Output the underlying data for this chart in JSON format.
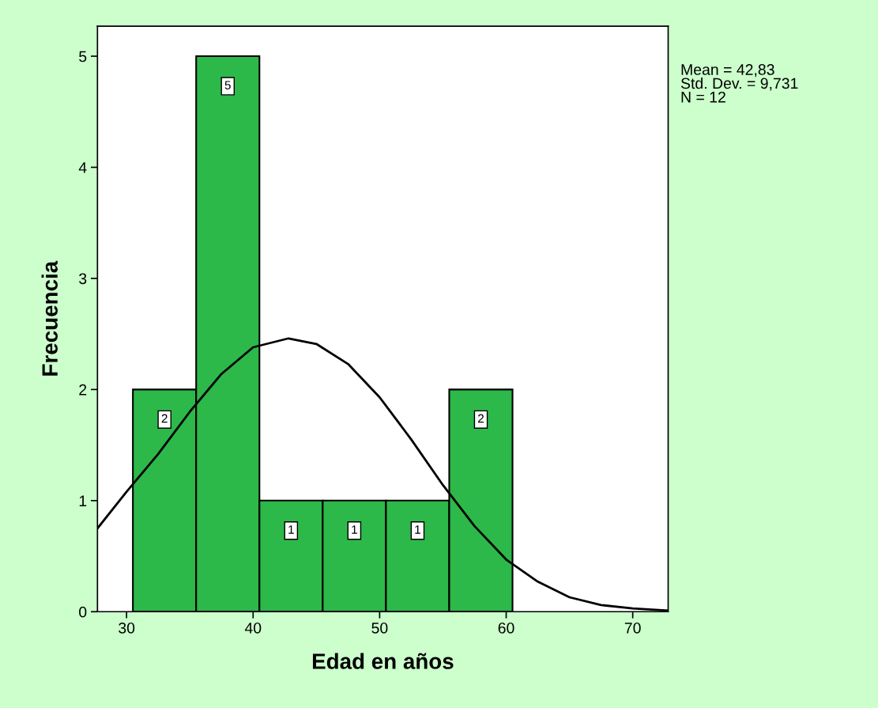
{
  "chart_data": {
    "type": "histogram",
    "xlabel": "Edad en años",
    "ylabel": "Frecuencia",
    "bins": [
      30.5,
      35.5,
      40.5,
      45.5,
      50.5,
      55.5,
      60.5
    ],
    "values": [
      2,
      5,
      1,
      1,
      1,
      2
    ],
    "color": "#2db84a",
    "value_labels": [
      "2",
      "5",
      "1",
      "1",
      "1",
      "2"
    ],
    "series": [
      {
        "type": "line",
        "color": "#000000",
        "x": [
          27.7,
          30,
          32.5,
          35,
          37.5,
          40,
          42.8,
          45,
          47.5,
          50,
          52.5,
          55,
          57.5,
          60,
          62.5,
          65,
          67.5,
          70,
          72.8
        ],
        "values": [
          0.75,
          1.08,
          1.42,
          1.8,
          2.14,
          2.38,
          2.46,
          2.41,
          2.23,
          1.93,
          1.55,
          1.14,
          0.77,
          0.47,
          0.27,
          0.13,
          0.06,
          0.03,
          0.01
        ]
      }
    ],
    "xlim": [
      27.7,
      72.8
    ],
    "xticks": [
      30,
      40,
      50,
      60,
      70
    ],
    "ylim": [
      0,
      5.27
    ],
    "yticks": [
      0,
      1,
      2,
      3,
      4,
      5
    ],
    "grid": false,
    "annotations": [
      "Mean = 42,83\nStd. Dev. = 9,731\nN = 12"
    ]
  }
}
